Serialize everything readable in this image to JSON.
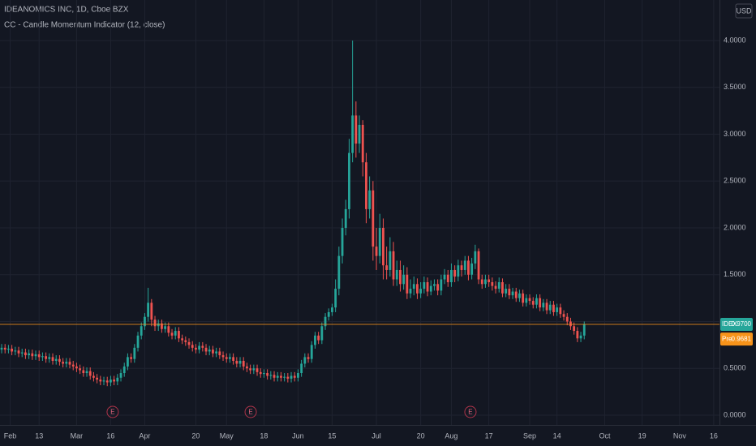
{
  "header": {
    "symbol": "IDEANOMICS INC, 1D, Cboe BZX",
    "indicator": "CC - Candle Momentum Indicator (12, close)",
    "currency": "USD"
  },
  "chart_data": {
    "type": "candlestick",
    "up_color": "#26a69a",
    "down_color": "#ef5350",
    "grid": true,
    "ylim": [
      -0.104,
      4.433
    ],
    "yticks": [
      {
        "value": 0,
        "label": "0.0000"
      },
      {
        "value": 0.5,
        "label": "0.5000"
      },
      {
        "value": 1,
        "label": "1.0000"
      },
      {
        "value": 1.5,
        "label": "1.5000"
      },
      {
        "value": 2,
        "label": "2.0000"
      },
      {
        "value": 2.5,
        "label": "2.5000"
      },
      {
        "value": 3,
        "label": "3.0000"
      },
      {
        "value": 3.5,
        "label": "3.5000"
      },
      {
        "value": 4,
        "label": "4.0000"
      }
    ],
    "xlim": [
      -0.48,
      210.7
    ],
    "xticks": [
      {
        "value": 2.5,
        "label": "Feb"
      },
      {
        "value": 11,
        "label": "13"
      },
      {
        "value": 22,
        "label": "Mar"
      },
      {
        "value": 32,
        "label": "16"
      },
      {
        "value": 42,
        "label": "Apr"
      },
      {
        "value": 57,
        "label": "20"
      },
      {
        "value": 66,
        "label": "May"
      },
      {
        "value": 77,
        "label": "18"
      },
      {
        "value": 87,
        "label": "Jun"
      },
      {
        "value": 97,
        "label": "15"
      },
      {
        "value": 110,
        "label": "Jul"
      },
      {
        "value": 123,
        "label": "20"
      },
      {
        "value": 132,
        "label": "Aug"
      },
      {
        "value": 143,
        "label": "17"
      },
      {
        "value": 155,
        "label": "Sep"
      },
      {
        "value": 163,
        "label": "14"
      },
      {
        "value": 177,
        "label": "Oct"
      },
      {
        "value": 188,
        "label": "19"
      },
      {
        "value": 199,
        "label": "Nov"
      },
      {
        "value": 209,
        "label": "16"
      }
    ],
    "open": [
      0.7,
      0.72,
      0.7,
      0.71,
      0.68,
      0.69,
      0.66,
      0.67,
      0.64,
      0.66,
      0.63,
      0.65,
      0.62,
      0.63,
      0.6,
      0.62,
      0.58,
      0.6,
      0.57,
      0.55,
      0.57,
      0.54,
      0.52,
      0.5,
      0.48,
      0.45,
      0.47,
      0.42,
      0.4,
      0.38,
      0.36,
      0.37,
      0.35,
      0.38,
      0.36,
      0.4,
      0.45,
      0.52,
      0.62,
      0.6,
      0.72,
      0.85,
      0.95,
      1.05,
      1.2,
      1.02,
      0.95,
      0.98,
      0.92,
      0.95,
      0.88,
      0.85,
      0.9,
      0.82,
      0.8,
      0.78,
      0.75,
      0.72,
      0.7,
      0.74,
      0.72,
      0.68,
      0.7,
      0.66,
      0.68,
      0.64,
      0.62,
      0.6,
      0.62,
      0.58,
      0.55,
      0.58,
      0.52,
      0.5,
      0.48,
      0.5,
      0.46,
      0.44,
      0.45,
      0.42,
      0.43,
      0.4,
      0.42,
      0.4,
      0.41,
      0.39,
      0.42,
      0.4,
      0.45,
      0.55,
      0.62,
      0.6,
      0.75,
      0.85,
      0.8,
      0.95,
      1.05,
      1.1,
      1.15,
      1.35,
      1.7,
      2.0,
      2.2,
      2.8,
      3.2,
      2.9,
      3.1,
      2.7,
      2.2,
      2.4,
      1.8,
      1.7,
      2.0,
      1.6,
      1.55,
      1.75,
      1.45,
      1.55,
      1.4,
      1.5,
      1.3,
      1.35,
      1.4,
      1.3,
      1.35,
      1.42,
      1.32,
      1.38,
      1.4,
      1.33,
      1.45,
      1.5,
      1.42,
      1.55,
      1.48,
      1.6,
      1.55,
      1.65,
      1.5,
      1.62,
      1.75,
      1.45,
      1.4,
      1.45,
      1.42,
      1.38,
      1.35,
      1.42,
      1.3,
      1.35,
      1.28,
      1.32,
      1.25,
      1.3,
      1.2,
      1.25,
      1.22,
      1.18,
      1.25,
      1.15,
      1.2,
      1.12,
      1.18,
      1.1,
      1.15,
      1.08,
      1.05,
      1.0,
      0.95,
      0.9,
      0.82,
      0.85
    ],
    "high": [
      0.76,
      0.76,
      0.75,
      0.75,
      0.73,
      0.73,
      0.71,
      0.71,
      0.7,
      0.7,
      0.69,
      0.69,
      0.67,
      0.67,
      0.66,
      0.66,
      0.64,
      0.64,
      0.61,
      0.61,
      0.61,
      0.58,
      0.56,
      0.54,
      0.52,
      0.51,
      0.51,
      0.46,
      0.44,
      0.42,
      0.41,
      0.41,
      0.42,
      0.42,
      0.44,
      0.49,
      0.56,
      0.66,
      0.66,
      0.76,
      0.89,
      0.99,
      1.09,
      1.36,
      1.24,
      1.06,
      1.02,
      1.02,
      0.99,
      0.99,
      0.92,
      0.94,
      0.94,
      0.86,
      0.84,
      0.82,
      0.79,
      0.76,
      0.78,
      0.78,
      0.76,
      0.74,
      0.74,
      0.72,
      0.72,
      0.68,
      0.66,
      0.66,
      0.66,
      0.62,
      0.62,
      0.62,
      0.56,
      0.54,
      0.54,
      0.54,
      0.5,
      0.49,
      0.49,
      0.47,
      0.47,
      0.46,
      0.46,
      0.45,
      0.45,
      0.46,
      0.46,
      0.49,
      0.59,
      0.66,
      0.66,
      0.79,
      0.89,
      0.89,
      0.99,
      1.09,
      1.14,
      1.19,
      1.45,
      1.8,
      2.1,
      2.3,
      2.95,
      4.0,
      3.35,
      3.2,
      3.15,
      2.8,
      2.55,
      2.5,
      2.0,
      2.15,
      2.1,
      1.8,
      1.9,
      1.85,
      1.65,
      1.65,
      1.6,
      1.58,
      1.45,
      1.48,
      1.46,
      1.42,
      1.48,
      1.47,
      1.44,
      1.45,
      1.45,
      1.5,
      1.56,
      1.55,
      1.62,
      1.6,
      1.66,
      1.65,
      1.7,
      1.7,
      1.68,
      1.82,
      1.78,
      1.5,
      1.5,
      1.5,
      1.47,
      1.43,
      1.47,
      1.46,
      1.4,
      1.4,
      1.36,
      1.36,
      1.34,
      1.34,
      1.29,
      1.29,
      1.26,
      1.29,
      1.29,
      1.24,
      1.24,
      1.22,
      1.22,
      1.19,
      1.19,
      1.12,
      1.09,
      1.04,
      0.99,
      0.94,
      0.89,
      1.0
    ],
    "low": [
      0.66,
      0.66,
      0.66,
      0.64,
      0.64,
      0.62,
      0.62,
      0.6,
      0.6,
      0.59,
      0.59,
      0.58,
      0.58,
      0.56,
      0.56,
      0.54,
      0.54,
      0.53,
      0.51,
      0.51,
      0.5,
      0.48,
      0.46,
      0.44,
      0.41,
      0.41,
      0.38,
      0.36,
      0.34,
      0.32,
      0.32,
      0.31,
      0.31,
      0.32,
      0.32,
      0.36,
      0.41,
      0.48,
      0.56,
      0.56,
      0.68,
      0.81,
      0.91,
      1.0,
      0.95,
      0.9,
      0.9,
      0.88,
      0.88,
      0.84,
      0.81,
      0.81,
      0.78,
      0.76,
      0.74,
      0.71,
      0.68,
      0.66,
      0.66,
      0.68,
      0.64,
      0.64,
      0.62,
      0.62,
      0.6,
      0.58,
      0.56,
      0.56,
      0.54,
      0.51,
      0.51,
      0.48,
      0.46,
      0.44,
      0.44,
      0.42,
      0.4,
      0.4,
      0.38,
      0.38,
      0.36,
      0.36,
      0.36,
      0.36,
      0.35,
      0.35,
      0.36,
      0.36,
      0.41,
      0.51,
      0.56,
      0.56,
      0.71,
      0.76,
      0.76,
      0.91,
      1.01,
      1.06,
      1.1,
      1.28,
      1.62,
      1.92,
      2.1,
      2.7,
      2.75,
      2.8,
      2.55,
      2.05,
      2.1,
      1.65,
      1.55,
      1.62,
      1.45,
      1.45,
      1.48,
      1.38,
      1.38,
      1.32,
      1.34,
      1.24,
      1.25,
      1.28,
      1.24,
      1.25,
      1.3,
      1.27,
      1.28,
      1.33,
      1.28,
      1.28,
      1.4,
      1.37,
      1.37,
      1.42,
      1.43,
      1.48,
      1.5,
      1.44,
      1.45,
      1.56,
      1.4,
      1.35,
      1.36,
      1.37,
      1.33,
      1.3,
      1.31,
      1.26,
      1.26,
      1.24,
      1.24,
      1.21,
      1.21,
      1.16,
      1.16,
      1.18,
      1.14,
      1.14,
      1.11,
      1.11,
      1.08,
      1.08,
      1.06,
      1.06,
      1.04,
      1.01,
      0.96,
      0.91,
      0.86,
      0.78,
      0.78,
      0.81
    ],
    "close": [
      0.72,
      0.7,
      0.71,
      0.68,
      0.69,
      0.66,
      0.67,
      0.64,
      0.66,
      0.63,
      0.65,
      0.62,
      0.63,
      0.6,
      0.62,
      0.58,
      0.6,
      0.57,
      0.55,
      0.57,
      0.54,
      0.52,
      0.5,
      0.48,
      0.45,
      0.47,
      0.42,
      0.4,
      0.38,
      0.36,
      0.37,
      0.35,
      0.38,
      0.36,
      0.4,
      0.45,
      0.52,
      0.62,
      0.6,
      0.72,
      0.85,
      0.95,
      1.05,
      1.2,
      1.02,
      0.95,
      0.98,
      0.92,
      0.95,
      0.88,
      0.85,
      0.9,
      0.82,
      0.8,
      0.78,
      0.75,
      0.72,
      0.7,
      0.74,
      0.72,
      0.68,
      0.7,
      0.66,
      0.68,
      0.64,
      0.62,
      0.6,
      0.62,
      0.58,
      0.55,
      0.58,
      0.52,
      0.5,
      0.48,
      0.5,
      0.46,
      0.44,
      0.45,
      0.42,
      0.43,
      0.4,
      0.42,
      0.4,
      0.41,
      0.39,
      0.42,
      0.4,
      0.45,
      0.55,
      0.62,
      0.6,
      0.75,
      0.85,
      0.8,
      0.95,
      1.05,
      1.1,
      1.15,
      1.35,
      1.7,
      2.0,
      2.2,
      2.8,
      3.2,
      2.9,
      3.1,
      2.7,
      2.2,
      2.4,
      1.8,
      1.7,
      2.0,
      1.6,
      1.55,
      1.75,
      1.45,
      1.55,
      1.4,
      1.5,
      1.3,
      1.35,
      1.4,
      1.3,
      1.35,
      1.42,
      1.32,
      1.38,
      1.4,
      1.33,
      1.45,
      1.5,
      1.42,
      1.55,
      1.48,
      1.6,
      1.55,
      1.65,
      1.5,
      1.62,
      1.75,
      1.45,
      1.4,
      1.45,
      1.42,
      1.38,
      1.35,
      1.42,
      1.3,
      1.35,
      1.28,
      1.32,
      1.25,
      1.3,
      1.2,
      1.25,
      1.22,
      1.18,
      1.25,
      1.15,
      1.2,
      1.12,
      1.18,
      1.1,
      1.15,
      1.08,
      1.05,
      1.0,
      0.95,
      0.9,
      0.82,
      0.85,
      0.97
    ],
    "price_labels": [
      {
        "name": "IDEX",
        "value": 0.97,
        "label": "0.9700",
        "color": "#26a69a"
      },
      {
        "name": "Pre",
        "value": 0.9681,
        "label": "0.9681",
        "color": "#f7931a"
      }
    ],
    "earnings": {
      "label": "E",
      "x": [
        32.6,
        73.1,
        137.6
      ]
    }
  }
}
